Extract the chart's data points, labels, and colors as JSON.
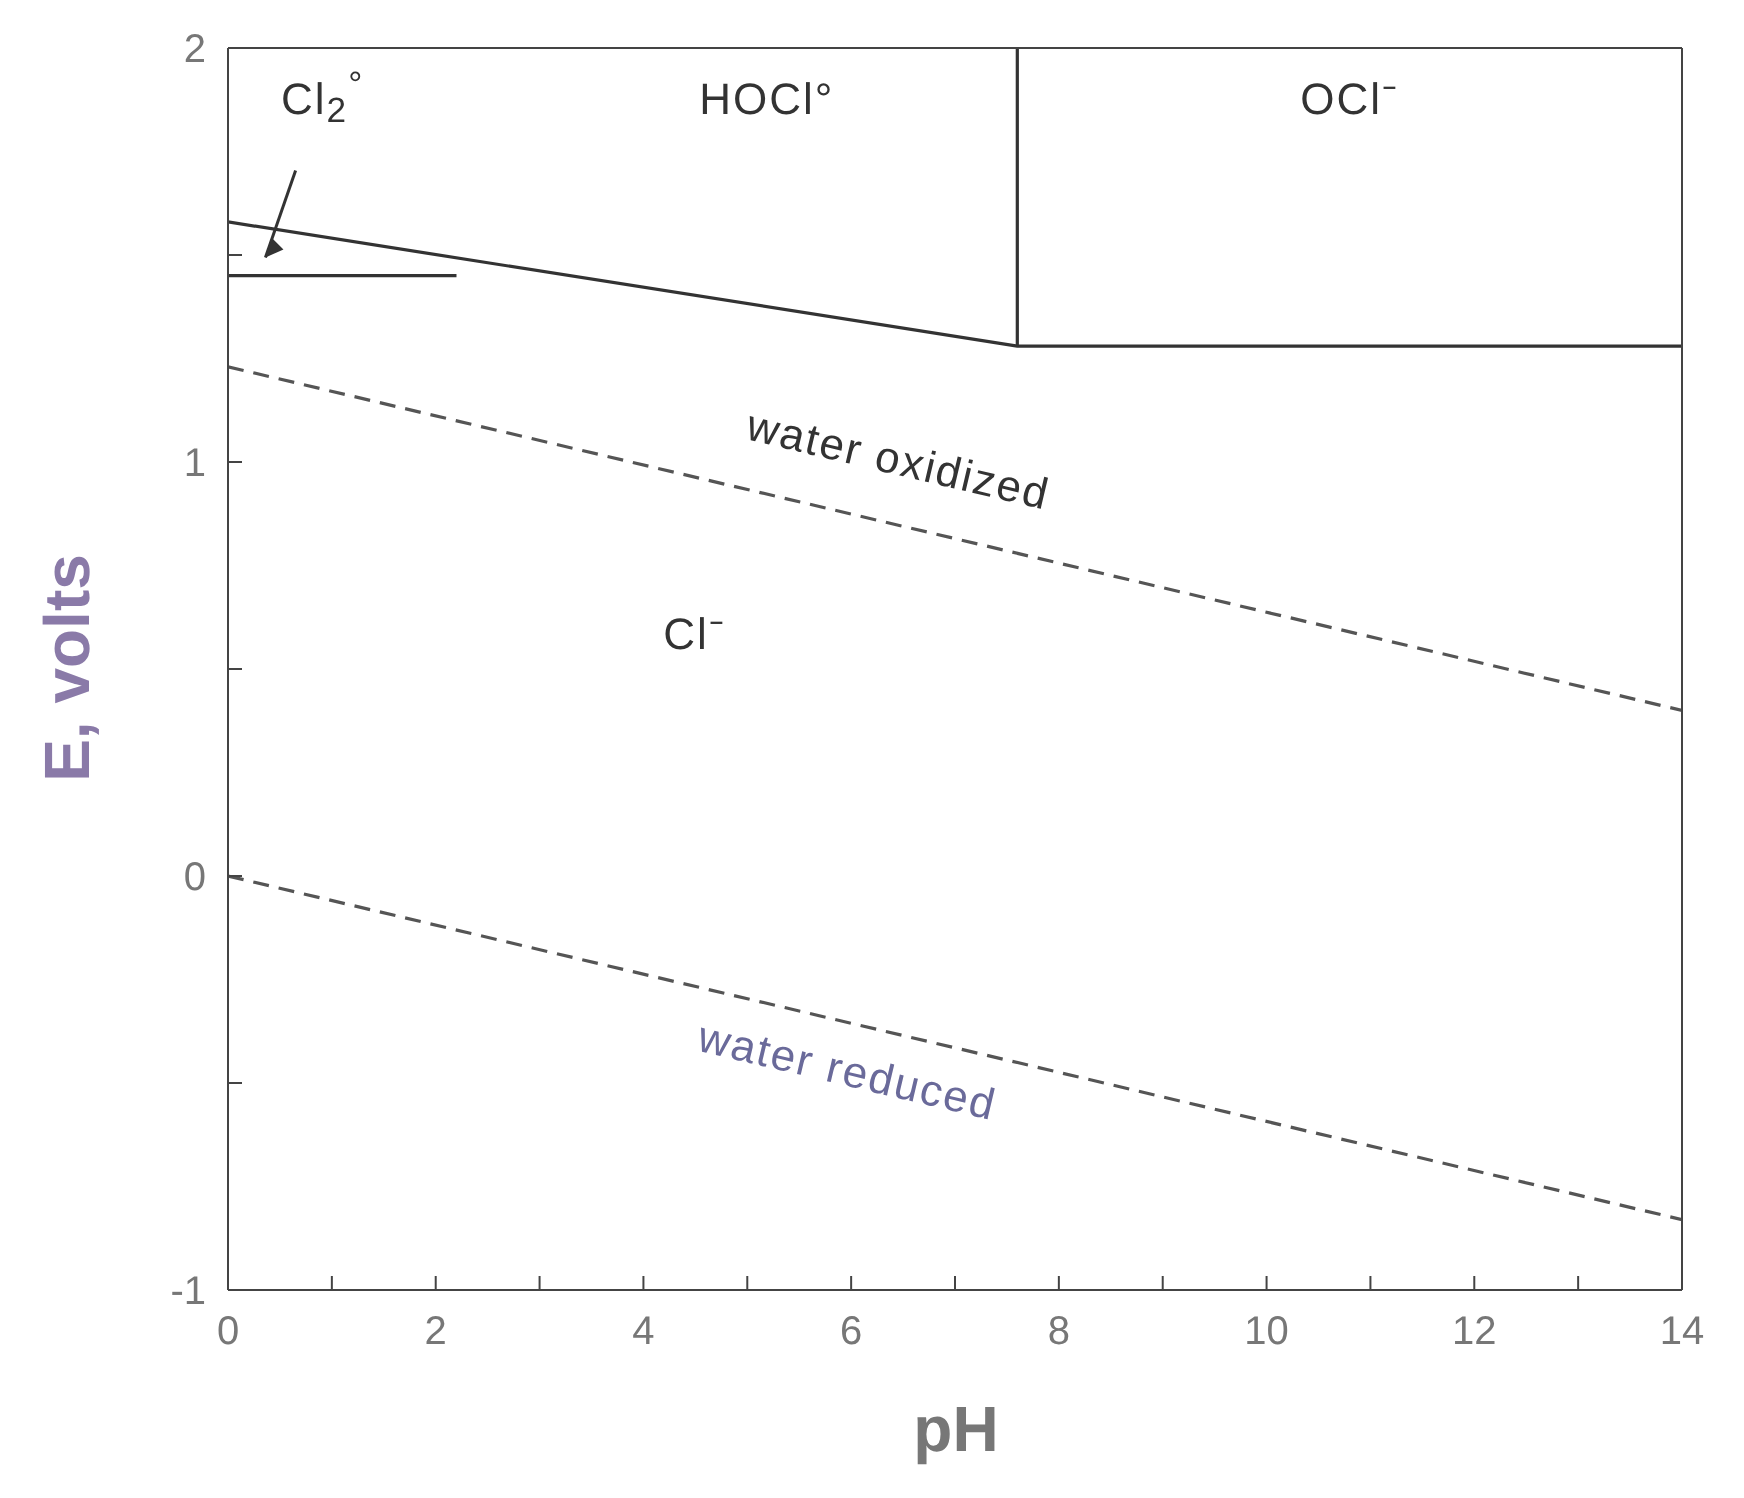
{
  "chart_data": {
    "type": "line",
    "xlabel": "pH",
    "ylabel": "E, volts",
    "xlim": [
      0,
      14
    ],
    "ylim": [
      -1,
      2
    ],
    "xticks": [
      0,
      {
        "value": 1,
        "label": null
      },
      2,
      {
        "value": 3,
        "label": null
      },
      4,
      {
        "value": 5,
        "label": null
      },
      6,
      {
        "value": 7,
        "label": null
      },
      8,
      {
        "value": 9,
        "label": null
      },
      10,
      {
        "value": 11,
        "label": null
      },
      12,
      {
        "value": 13,
        "label": null
      },
      14
    ],
    "yticks": [
      -1,
      {
        "value": -0.5,
        "label": null
      },
      0,
      {
        "value": 0.5,
        "label": null
      },
      1,
      {
        "value": 1.5,
        "label": null
      },
      2
    ],
    "marker": "none",
    "series": [
      {
        "color": "#333333",
        "line_style": "solid",
        "x": [
          0,
          2.2
        ],
        "values": [
          1.45,
          1.45
        ]
      },
      {
        "color": "#333333",
        "line_style": "solid",
        "x": [
          0,
          7.6,
          14
        ],
        "values": [
          1.58,
          1.28,
          1.28
        ]
      },
      {
        "color": "#333333",
        "line_style": "solid",
        "x": [
          7.6,
          7.6
        ],
        "values": [
          1.28,
          2
        ]
      },
      {
        "color": "#555555",
        "line_style": "dashed",
        "x": [
          0,
          14
        ],
        "values": [
          1.23,
          0.4
        ]
      },
      {
        "color": "#555555",
        "line_style": "dashed",
        "x": [
          0,
          14
        ],
        "values": [
          0,
          -0.83
        ]
      }
    ],
    "annotations": [
      "Cl$_{2}$$^{°}$",
      "HOCl°",
      "OCl⁻",
      "Cl⁻",
      "water oxidized",
      "water reduced"
    ]
  }
}
